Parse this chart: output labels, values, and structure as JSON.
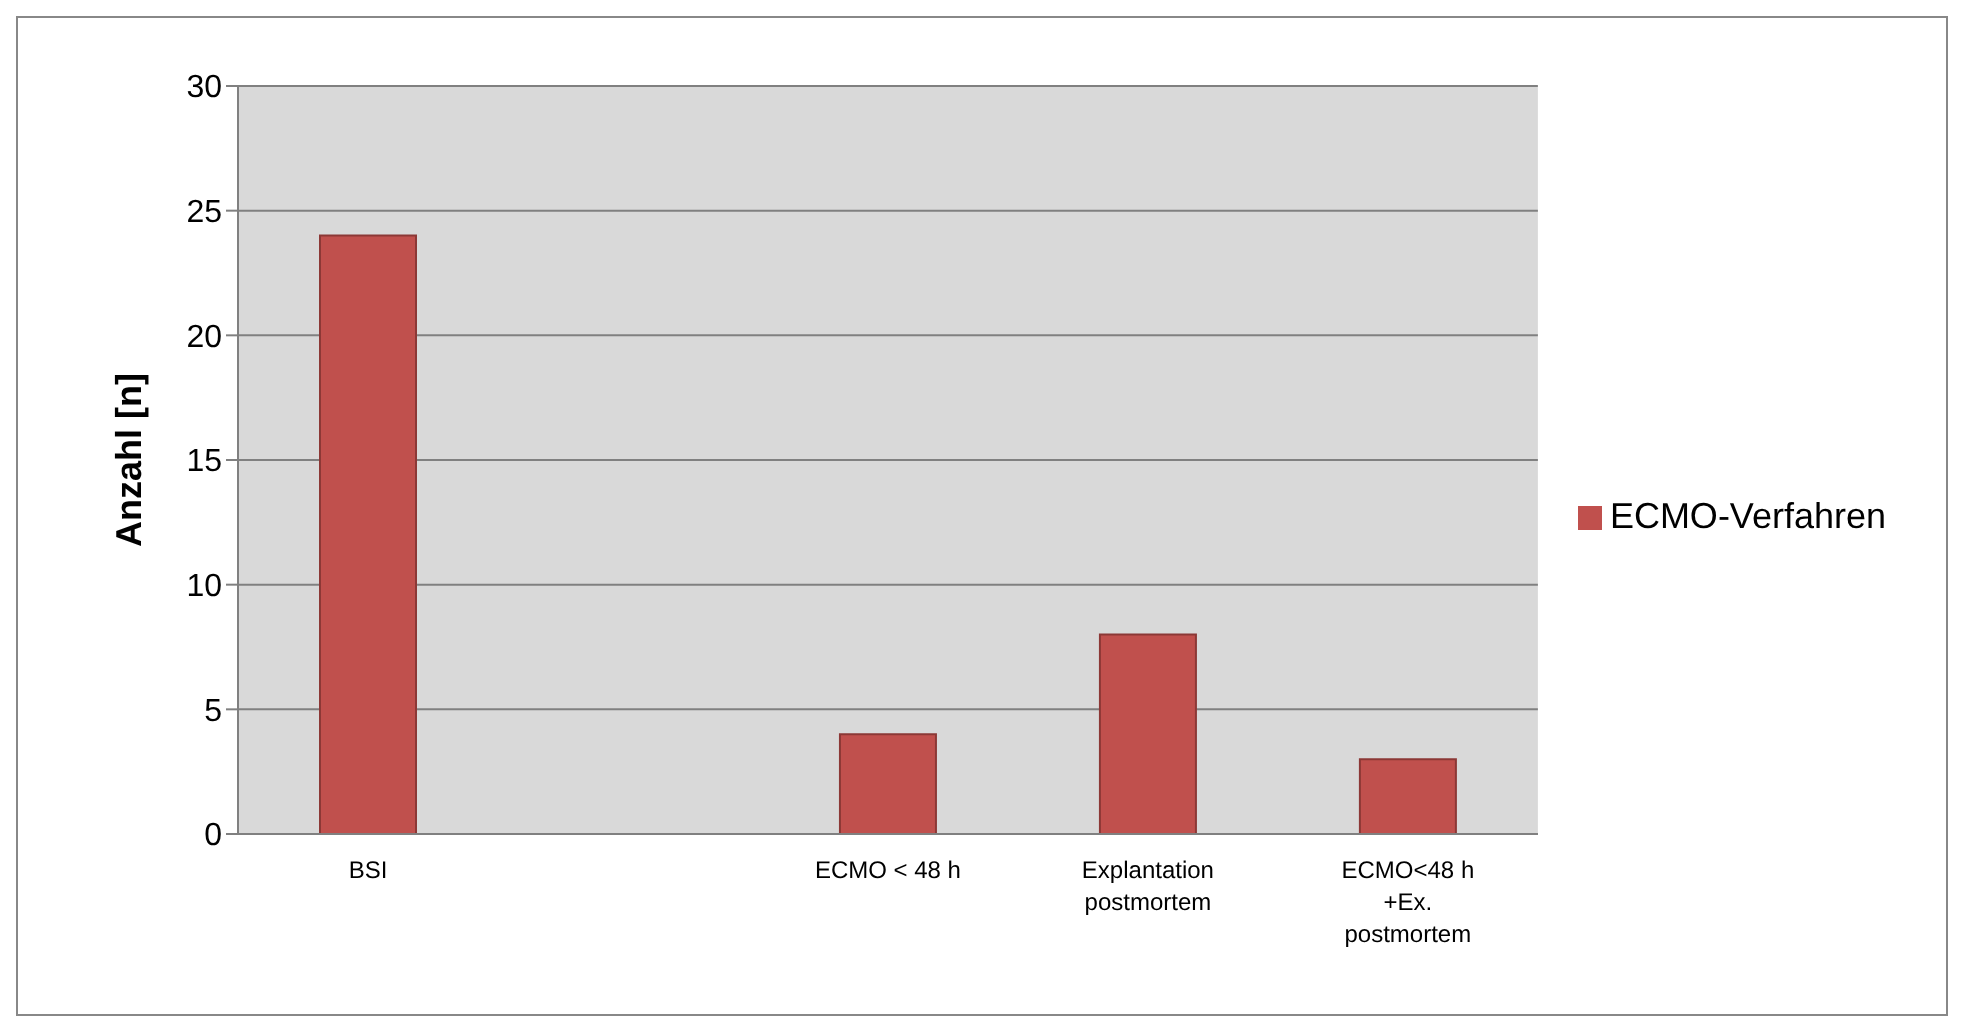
{
  "chart_data": {
    "type": "bar",
    "ylabel": "Anzahl [n]",
    "categories": [
      "BSI",
      null,
      "ECMO < 48 h",
      "Explantation postmortem",
      "ECMO<48 h +Ex. postmortem"
    ],
    "series": [
      {
        "name": "ECMO-Verfahren",
        "color": "#c0504d",
        "values": [
          24,
          null,
          4,
          8,
          3
        ]
      }
    ],
    "ylim": [
      0,
      30
    ],
    "yticks": [
      0,
      5,
      10,
      15,
      20,
      25,
      30
    ],
    "grid": "y",
    "legend": "right"
  }
}
